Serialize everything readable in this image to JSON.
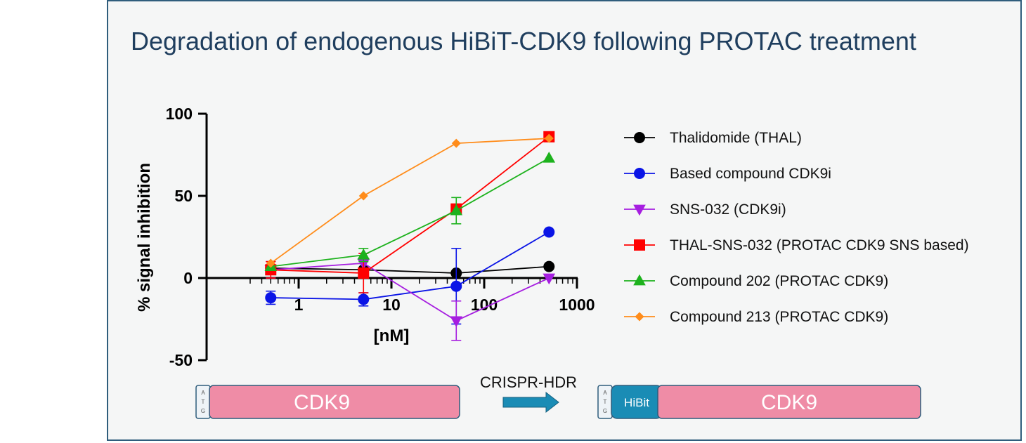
{
  "title": "Degradation of endogenous HiBiT-CDK9 following PROTAC treatment",
  "chart_data": {
    "type": "line",
    "x_scale": "log",
    "xlabel": "[nM]",
    "ylabel": "% signal inhibition",
    "xlim": [
      0.25,
      1000
    ],
    "ylim": [
      -50,
      100
    ],
    "x_ticks": [
      1,
      10,
      100,
      1000
    ],
    "x_tick_labels": [
      "1",
      "10",
      "100",
      "1000"
    ],
    "y_ticks": [
      -50,
      0,
      50,
      100
    ],
    "y_tick_labels": [
      "-50",
      "0",
      "50",
      "100"
    ],
    "x": [
      0.5,
      5,
      50,
      500
    ],
    "legend_position": "right",
    "series": [
      {
        "name": "Thalidomide (THAL)",
        "color": "#000000",
        "marker": "circle",
        "values": [
          6,
          5,
          3,
          7
        ],
        "errors": [
          0,
          0,
          0,
          0
        ]
      },
      {
        "name": "Based compound CDK9i",
        "color": "#0a14e6",
        "marker": "circle",
        "values": [
          -12,
          -13,
          -5,
          28
        ],
        "errors": [
          4,
          4,
          23,
          0
        ]
      },
      {
        "name": "SNS-032 (CDK9i)",
        "color": "#a61ee0",
        "marker": "triangle-down",
        "values": [
          5,
          9,
          -26,
          0
        ],
        "errors": [
          5,
          6,
          12,
          0
        ]
      },
      {
        "name": "THAL-SNS-032 (PROTAC CDK9 SNS based)",
        "color": "#ff0000",
        "marker": "square",
        "values": [
          5,
          3,
          42,
          86
        ],
        "errors": [
          5,
          12,
          3,
          0
        ]
      },
      {
        "name": "Compound 202 (PROTAC CDK9)",
        "color": "#1db21d",
        "marker": "triangle-up",
        "values": [
          7,
          14,
          41,
          73
        ],
        "errors": [
          0,
          4,
          8,
          0
        ]
      },
      {
        "name": "Compound 213 (PROTAC CDK9)",
        "color": "#ff8c1a",
        "marker": "diamond",
        "values": [
          9,
          50,
          82,
          85
        ],
        "errors": [
          0,
          0,
          0,
          0
        ]
      }
    ]
  },
  "diagram": {
    "left_gene": {
      "atg": [
        "A",
        "T",
        "G"
      ],
      "label": "CDK9",
      "color": "#ef8ca6"
    },
    "arrow_label": "CRISPR-HDR",
    "right_gene": {
      "atg": [
        "A",
        "T",
        "G"
      ],
      "tag": "HiBit",
      "tag_color": "#1a8cb5",
      "label": "CDK9",
      "color": "#ef8ca6"
    }
  }
}
